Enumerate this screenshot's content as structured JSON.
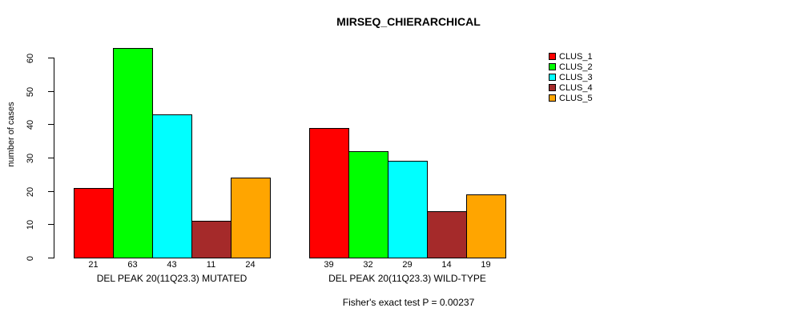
{
  "chart_data": {
    "type": "bar",
    "title": "MIRSEQ_CHIERARCHICAL",
    "ylabel": "number of cases",
    "xlabel": "",
    "ylim": [
      0,
      60
    ],
    "yticks": [
      0,
      10,
      20,
      30,
      40,
      50,
      60
    ],
    "grid": false,
    "legend_position": "right",
    "series_names": [
      "CLUS_1",
      "CLUS_2",
      "CLUS_3",
      "CLUS_4",
      "CLUS_5"
    ],
    "colors": [
      "#ff0000",
      "#00ff00",
      "#00ffff",
      "#a52a2a",
      "#ffa500"
    ],
    "groups": [
      {
        "label": "DEL PEAK 20(11Q23.3) MUTATED",
        "values": [
          21,
          63,
          43,
          11,
          24
        ]
      },
      {
        "label": "DEL PEAK 20(11Q23.3) WILD-TYPE",
        "values": [
          39,
          32,
          29,
          14,
          19
        ]
      }
    ],
    "annotation": "Fisher's exact test P = 0.00237"
  }
}
